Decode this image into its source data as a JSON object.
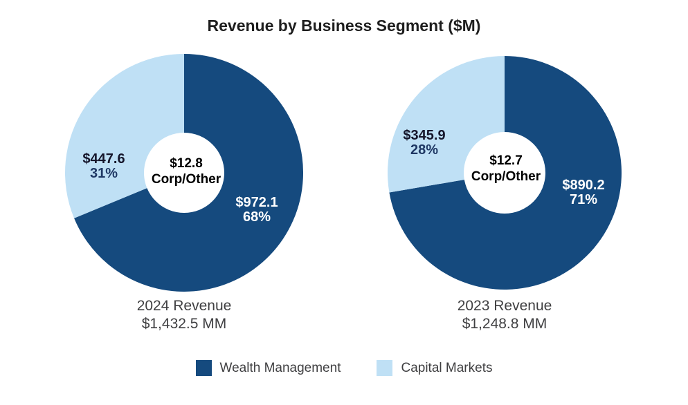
{
  "title": "Revenue by Business Segment ($M)",
  "colors": {
    "wealth_management": "#154A7E",
    "capital_markets": "#BFE0F5",
    "pct_text_on_light": "#1F3864",
    "value_text_on_light": "#15152A",
    "label_text_on_dark": "#FFFFFF",
    "caption_text": "#3F3F41",
    "title_text": "#1E1E1E",
    "background": "#FFFFFF"
  },
  "legend": {
    "items": [
      {
        "label": "Wealth Management",
        "color": "#154A7E"
      },
      {
        "label": "Capital Markets",
        "color": "#BFE0F5"
      }
    ]
  },
  "chart_data": [
    {
      "type": "pie",
      "variant": "donut",
      "year_label": "2024 Revenue",
      "total_label": "$1,432.5 MM",
      "total": 1432.5,
      "start_angle_deg": 0,
      "direction": "clockwise",
      "center_label": {
        "value": "$12.8",
        "segment": "Corp/Other"
      },
      "slices": [
        {
          "name": "Wealth Management",
          "value": 972.1,
          "value_label": "$972.1",
          "pct_label": "68%",
          "color": "#154A7E"
        },
        {
          "name": "Capital Markets",
          "value": 447.6,
          "value_label": "$447.6",
          "pct_label": "31%",
          "color": "#BFE0F5"
        },
        {
          "name": "Corp/Other",
          "value": 12.8,
          "value_label": "$12.8",
          "pct_label": "",
          "note": "shown in donut hole, merged into dark wedge"
        }
      ]
    },
    {
      "type": "pie",
      "variant": "donut",
      "year_label": "2023 Revenue",
      "total_label": "$1,248.8 MM",
      "total": 1248.8,
      "start_angle_deg": 0,
      "direction": "clockwise",
      "center_label": {
        "value": "$12.7",
        "segment": "Corp/Other"
      },
      "slices": [
        {
          "name": "Wealth Management",
          "value": 890.2,
          "value_label": "$890.2",
          "pct_label": "71%",
          "color": "#154A7E"
        },
        {
          "name": "Capital Markets",
          "value": 345.9,
          "value_label": "$345.9",
          "pct_label": "28%",
          "color": "#BFE0F5"
        },
        {
          "name": "Corp/Other",
          "value": 12.7,
          "value_label": "$12.7",
          "pct_label": "",
          "note": "shown in donut hole, merged into dark wedge"
        }
      ]
    }
  ]
}
